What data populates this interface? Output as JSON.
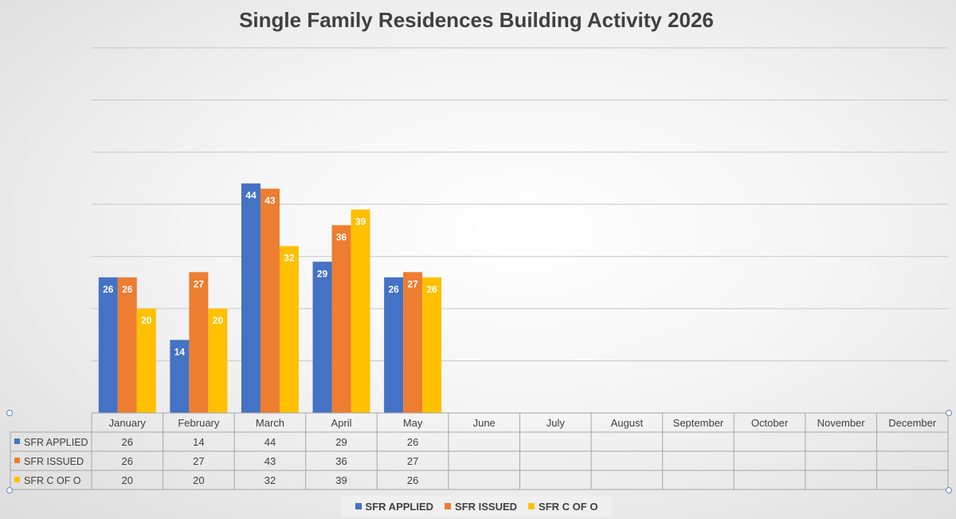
{
  "chart_data": {
    "type": "bar",
    "title": "Single Family Residences Building Activity 2026",
    "categories": [
      "January",
      "February",
      "March",
      "April",
      "May",
      "June",
      "July",
      "August",
      "September",
      "October",
      "November",
      "December"
    ],
    "series": [
      {
        "name": "SFR APPLIED",
        "color": "#4472c4",
        "values": [
          26,
          14,
          44,
          29,
          26,
          null,
          null,
          null,
          null,
          null,
          null,
          null
        ]
      },
      {
        "name": "SFR ISSUED",
        "color": "#ed7d31",
        "values": [
          26,
          27,
          43,
          36,
          27,
          null,
          null,
          null,
          null,
          null,
          null,
          null
        ]
      },
      {
        "name": "SFR C OF O",
        "color": "#ffc000",
        "values": [
          20,
          20,
          32,
          39,
          26,
          null,
          null,
          null,
          null,
          null,
          null,
          null
        ]
      }
    ],
    "ylim": [
      0,
      70
    ],
    "y_gridline_step": 10,
    "y_tick_labels_shown": false,
    "data_labels": true,
    "data_table": true,
    "legend": "bottom"
  }
}
